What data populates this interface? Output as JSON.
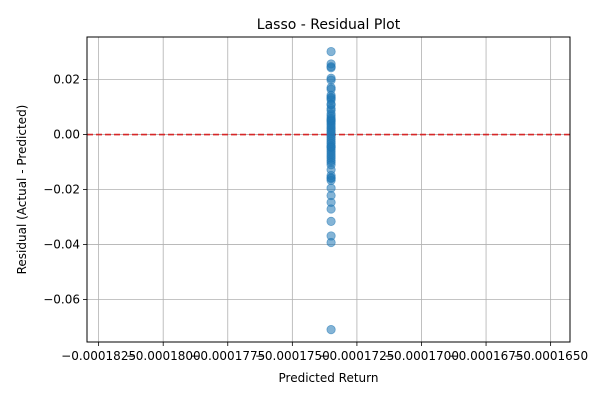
{
  "chart_data": {
    "type": "scatter",
    "title": "Lasso - Residual Plot",
    "xlabel": "Predicted Return",
    "ylabel": "Residual (Actual - Predicted)",
    "xlim": [
      -0.00018295,
      -0.00016425
    ],
    "ylim": [
      -0.0755,
      0.0355
    ],
    "grid": true,
    "x_ticks": [
      -0.0001825,
      -0.00018,
      -0.0001775,
      -0.000175,
      -0.0001725,
      -0.00017,
      -0.0001675,
      -0.000165
    ],
    "x_tick_labels": [
      "−0.0001825",
      "−0.0001800",
      "−0.0001775",
      "−0.0001750",
      "−0.0001725",
      "−0.0001700",
      "−0.0001675",
      "−0.0001650"
    ],
    "y_ticks": [
      -0.06,
      -0.04,
      -0.02,
      0.0,
      0.02
    ],
    "y_tick_labels": [
      "−0.06",
      "−0.04",
      "−0.02",
      "0.00",
      "0.02"
    ],
    "reference_line": {
      "y": 0.0,
      "style": "dashed",
      "color": "#d62728"
    },
    "series": [
      {
        "name": "residuals",
        "color": "#1f77b4",
        "x": [
          -0.0001735,
          -0.0001735,
          -0.0001735,
          -0.0001735,
          -0.0001735,
          -0.0001735,
          -0.0001735,
          -0.0001735,
          -0.0001735,
          -0.0001735,
          -0.0001735,
          -0.0001735,
          -0.0001735,
          -0.0001735,
          -0.0001735,
          -0.0001735,
          -0.0001735,
          -0.0001735,
          -0.0001735,
          -0.0001735,
          -0.0001735,
          -0.0001735,
          -0.0001735,
          -0.0001735,
          -0.0001735,
          -0.0001735,
          -0.0001735,
          -0.0001735,
          -0.0001735,
          -0.0001735,
          -0.0001735,
          -0.0001735,
          -0.0001735,
          -0.0001735,
          -0.0001735,
          -0.0001735,
          -0.0001735,
          -0.0001735,
          -0.0001735,
          -0.0001735,
          -0.0001735,
          -0.0001735,
          -0.0001735,
          -0.0001735,
          -0.0001735,
          -0.0001735,
          -0.0001735,
          -0.0001735,
          -0.0001735,
          -0.0001735,
          -0.0001735,
          -0.0001735,
          -0.0001735,
          -0.0001735,
          -0.0001735,
          -0.0001735,
          -0.0001735,
          -0.0001735
        ],
        "y": [
          0.0302,
          0.0257,
          0.0247,
          0.0243,
          0.0205,
          0.0198,
          0.0171,
          0.0165,
          0.0143,
          0.0136,
          0.0132,
          0.0126,
          0.0108,
          0.0095,
          0.0088,
          0.0075,
          0.0068,
          0.006,
          0.0055,
          0.0048,
          0.0041,
          0.0035,
          0.0028,
          0.0021,
          0.0015,
          0.0009,
          0.0003,
          -0.0004,
          -0.0011,
          -0.0018,
          -0.0026,
          -0.0033,
          -0.0041,
          -0.0048,
          -0.0056,
          -0.0063,
          -0.0071,
          -0.0078,
          -0.0086,
          -0.0094,
          -0.0101,
          -0.011,
          -0.0128,
          -0.0149,
          -0.0157,
          -0.016,
          -0.0167,
          -0.0195,
          -0.0222,
          -0.0247,
          -0.0271,
          -0.0316,
          -0.0369,
          -0.0393,
          -0.071,
          0.0111,
          -0.0045,
          0.0051
        ]
      }
    ]
  }
}
